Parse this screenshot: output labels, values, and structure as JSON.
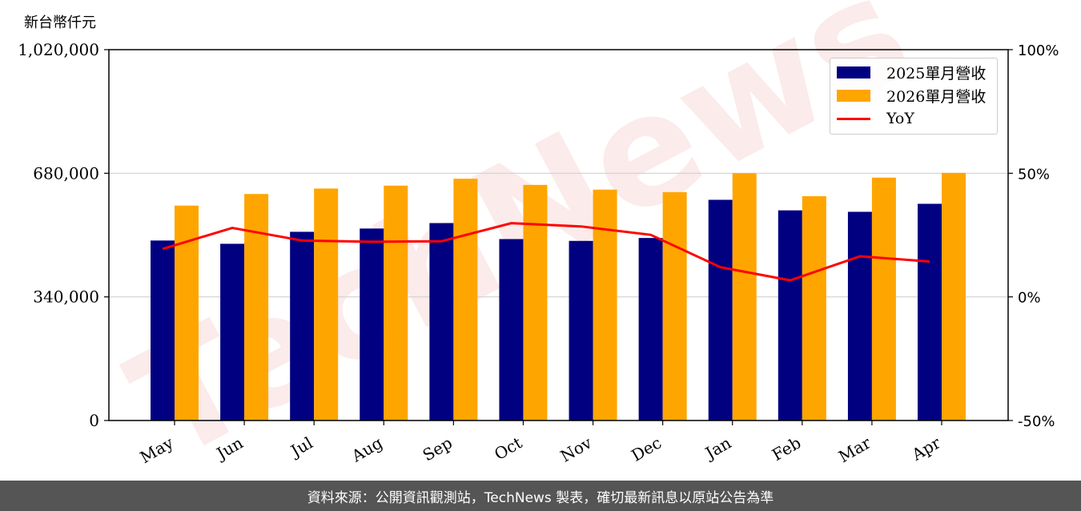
{
  "header": {
    "unit_label": "新台幣仟元"
  },
  "footer": {
    "text": "資料來源：公開資訊觀測站，TechNews 製表，確切最新訊息以原站公告為準"
  },
  "watermark": {
    "text": "TechNews"
  },
  "chart_data": {
    "type": "bar",
    "categories": [
      "May",
      "Jun",
      "Jul",
      "Aug",
      "Sep",
      "Oct",
      "Nov",
      "Dec",
      "Jan",
      "Feb",
      "Mar",
      "Apr"
    ],
    "series": [
      {
        "name": "2025單月營收",
        "type": "bar",
        "color": "#000080",
        "values": [
          495000,
          486000,
          519000,
          528000,
          543000,
          499000,
          494000,
          502000,
          607000,
          578000,
          574000,
          596000
        ]
      },
      {
        "name": "2026單月營收",
        "type": "bar",
        "color": "#FFA500",
        "values": [
          591000,
          623000,
          638000,
          646000,
          665000,
          648000,
          635000,
          628000,
          680000,
          617000,
          668000,
          681000
        ]
      },
      {
        "name": "YoY",
        "type": "line",
        "color": "#FF0000",
        "axis": "right",
        "values": [
          19.4,
          27.9,
          22.8,
          22.3,
          22.5,
          29.8,
          28.5,
          25.1,
          12.0,
          6.7,
          16.4,
          14.3
        ]
      }
    ],
    "y_left": {
      "ylim": [
        0,
        1020000
      ],
      "ticks": [
        "0",
        "340,000",
        "680,000",
        "1,020,000"
      ],
      "tick_values": [
        0,
        340000,
        680000,
        1020000
      ]
    },
    "y_right": {
      "ylim": [
        -50,
        100
      ],
      "ticks": [
        "-50%",
        "0%",
        "50%",
        "100%"
      ],
      "tick_values": [
        -50,
        0,
        50,
        100
      ]
    },
    "grid": "horizontal",
    "legend_position": "top-right"
  }
}
